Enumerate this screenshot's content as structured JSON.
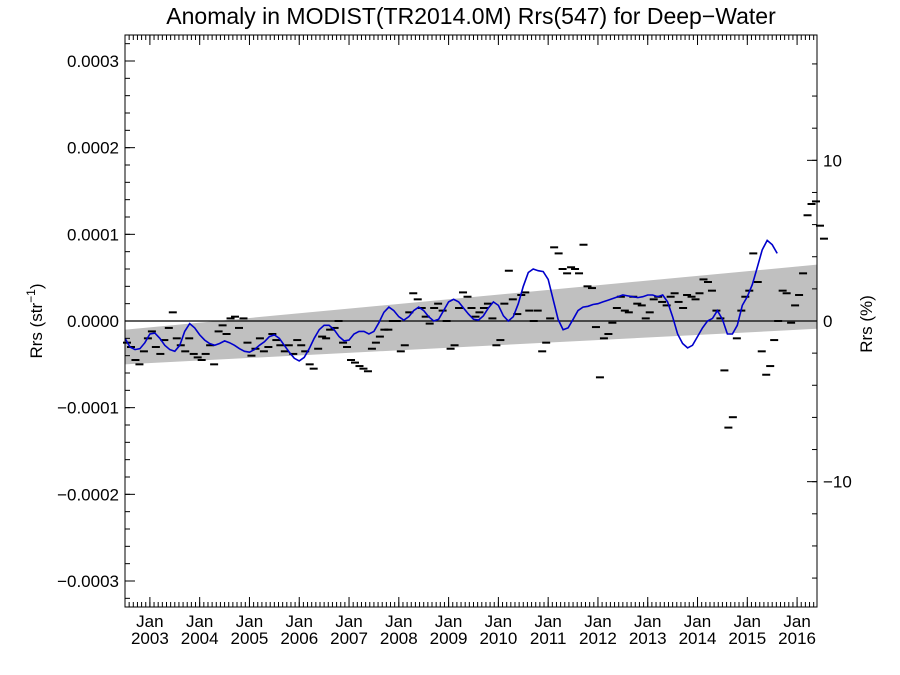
{
  "chart_data": {
    "type": "scatter",
    "title": "Anomaly in MODIST(TR2014.0M) Rrs(547) for Deep−Water",
    "ylabel_left": {
      "base": "Rrs (str",
      "sup": "−1",
      "end": ")"
    },
    "ylabel_right": "Rrs (%)",
    "xlim": [
      2002.5,
      2016.4
    ],
    "ylim": [
      -0.00033,
      0.00033
    ],
    "right_axis_ylim": [
      -17.8,
      17.8
    ],
    "y_ticks": [
      {
        "v": 0.0003,
        "label": "0.0003"
      },
      {
        "v": 0.0002,
        "label": "0.0002"
      },
      {
        "v": 0.0001,
        "label": "0.0001"
      },
      {
        "v": 0.0,
        "label": "0.0000"
      },
      {
        "v": -0.0001,
        "label": "−0.0001"
      },
      {
        "v": -0.0002,
        "label": "−0.0002"
      },
      {
        "v": -0.0003,
        "label": "−0.0003"
      }
    ],
    "right_ticks": [
      {
        "v": 10,
        "label": "10"
      },
      {
        "v": 0,
        "label": "0"
      },
      {
        "v": -10,
        "label": "−10"
      }
    ],
    "x_ticks": [
      {
        "v": 2003,
        "label1": "Jan",
        "label2": "2003"
      },
      {
        "v": 2004,
        "label1": "Jan",
        "label2": "2004"
      },
      {
        "v": 2005,
        "label1": "Jan",
        "label2": "2005"
      },
      {
        "v": 2006,
        "label1": "Jan",
        "label2": "2006"
      },
      {
        "v": 2007,
        "label1": "Jan",
        "label2": "2007"
      },
      {
        "v": 2008,
        "label1": "Jan",
        "label2": "2008"
      },
      {
        "v": 2009,
        "label1": "Jan",
        "label2": "2009"
      },
      {
        "v": 2010,
        "label1": "Jan",
        "label2": "2010"
      },
      {
        "v": 2011,
        "label1": "Jan",
        "label2": "2011"
      },
      {
        "v": 2012,
        "label1": "Jan",
        "label2": "2012"
      },
      {
        "v": 2013,
        "label1": "Jan",
        "label2": "2013"
      },
      {
        "v": 2014,
        "label1": "Jan",
        "label2": "2014"
      },
      {
        "v": 2015,
        "label1": "Jan",
        "label2": "2015"
      },
      {
        "v": 2016,
        "label1": "Jan",
        "label2": "2016"
      }
    ],
    "band": {
      "x": [
        2002.5,
        2016.4
      ],
      "upper": [
        -1e-05,
        6.5e-05
      ],
      "lower": [
        -5e-05,
        -9e-06
      ]
    },
    "zero_line": 0,
    "colors": {
      "band": "#c0c0c0",
      "smooth_line": "#0000cc",
      "points": "#000000",
      "axes": "#000000",
      "zero_line": "#000000"
    },
    "monthly_points": [
      [
        2002.54,
        -2.5e-05
      ],
      [
        2002.62,
        -3e-05
      ],
      [
        2002.71,
        -4.5e-05
      ],
      [
        2002.79,
        -5e-05
      ],
      [
        2002.88,
        -3.5e-05
      ],
      [
        2002.96,
        -2e-05
      ],
      [
        2003.04,
        -1.2e-05
      ],
      [
        2003.12,
        -3e-05
      ],
      [
        2003.21,
        -3.8e-05
      ],
      [
        2003.29,
        -2.2e-05
      ],
      [
        2003.38,
        -8e-06
      ],
      [
        2003.46,
        1e-05
      ],
      [
        2003.54,
        -2e-05
      ],
      [
        2003.62,
        -2.8e-05
      ],
      [
        2003.71,
        -3.5e-05
      ],
      [
        2003.79,
        -2e-05
      ],
      [
        2003.88,
        -3.8e-05
      ],
      [
        2003.96,
        -4.2e-05
      ],
      [
        2004.04,
        -4.5e-05
      ],
      [
        2004.12,
        -3.8e-05
      ],
      [
        2004.21,
        -2.8e-05
      ],
      [
        2004.29,
        -5e-05
      ],
      [
        2004.38,
        -1.2e-05
      ],
      [
        2004.46,
        -5e-06
      ],
      [
        2004.54,
        -1.5e-05
      ],
      [
        2004.62,
        3e-06
      ],
      [
        2004.71,
        5e-06
      ],
      [
        2004.79,
        -8e-06
      ],
      [
        2004.88,
        3e-06
      ],
      [
        2004.96,
        -2.5e-05
      ],
      [
        2005.04,
        -4e-05
      ],
      [
        2005.12,
        -3.2e-05
      ],
      [
        2005.21,
        -2e-05
      ],
      [
        2005.29,
        -3.5e-05
      ],
      [
        2005.38,
        -3e-05
      ],
      [
        2005.46,
        -1.5e-05
      ],
      [
        2005.54,
        -2.2e-05
      ],
      [
        2005.62,
        -2.8e-05
      ],
      [
        2005.71,
        -3.5e-05
      ],
      [
        2005.79,
        -2.8e-05
      ],
      [
        2005.88,
        -3.8e-05
      ],
      [
        2005.96,
        -2.2e-05
      ],
      [
        2006.04,
        -2.8e-05
      ],
      [
        2006.12,
        -3.5e-05
      ],
      [
        2006.21,
        -5e-05
      ],
      [
        2006.29,
        -5.5e-05
      ],
      [
        2006.38,
        -3.2e-05
      ],
      [
        2006.46,
        -1.8e-05
      ],
      [
        2006.54,
        -2e-05
      ],
      [
        2006.62,
        -1e-05
      ],
      [
        2006.71,
        -8e-06
      ],
      [
        2006.79,
        0.0
      ],
      [
        2006.88,
        -2.5e-05
      ],
      [
        2006.96,
        -3e-05
      ],
      [
        2007.04,
        -4.5e-05
      ],
      [
        2007.12,
        -4.8e-05
      ],
      [
        2007.21,
        -5.2e-05
      ],
      [
        2007.29,
        -5.5e-05
      ],
      [
        2007.38,
        -5.8e-05
      ],
      [
        2007.46,
        -3.2e-05
      ],
      [
        2007.54,
        -2.5e-05
      ],
      [
        2007.62,
        -1.8e-05
      ],
      [
        2007.71,
        -1e-05
      ],
      [
        2007.79,
        -1e-05
      ],
      [
        2007.88,
        0.0
      ],
      [
        2007.96,
        0.0
      ],
      [
        2008.04,
        -3.5e-05
      ],
      [
        2008.12,
        -2.8e-05
      ],
      [
        2008.21,
        1e-05
      ],
      [
        2008.29,
        3.2e-05
      ],
      [
        2008.38,
        2.5e-05
      ],
      [
        2008.46,
        1.5e-05
      ],
      [
        2008.54,
        5e-06
      ],
      [
        2008.62,
        -3e-06
      ],
      [
        2008.71,
        1.5e-05
      ],
      [
        2008.79,
        2e-05
      ],
      [
        2008.88,
        1.2e-05
      ],
      [
        2008.96,
        0.0
      ],
      [
        2009.04,
        -3.2e-05
      ],
      [
        2009.12,
        -2.8e-05
      ],
      [
        2009.21,
        1.5e-05
      ],
      [
        2009.29,
        3.3e-05
      ],
      [
        2009.38,
        2.8e-05
      ],
      [
        2009.46,
        1.5e-05
      ],
      [
        2009.54,
        5e-06
      ],
      [
        2009.62,
        1e-05
      ],
      [
        2009.71,
        1.5e-05
      ],
      [
        2009.79,
        2e-05
      ],
      [
        2009.88,
        3e-06
      ],
      [
        2009.96,
        -2.8e-05
      ],
      [
        2010.04,
        -2.2e-05
      ],
      [
        2010.12,
        2e-05
      ],
      [
        2010.21,
        5.8e-05
      ],
      [
        2010.29,
        2.5e-05
      ],
      [
        2010.38,
        8e-06
      ],
      [
        2010.46,
        3e-05
      ],
      [
        2010.54,
        3.3e-05
      ],
      [
        2010.62,
        1.2e-05
      ],
      [
        2010.71,
        0.0
      ],
      [
        2010.79,
        1.2e-05
      ],
      [
        2010.88,
        -3.5e-05
      ],
      [
        2010.96,
        -2.5e-05
      ],
      [
        2011.04,
        3e-06
      ],
      [
        2011.12,
        8.5e-05
      ],
      [
        2011.21,
        7.8e-05
      ],
      [
        2011.29,
        6e-05
      ],
      [
        2011.38,
        5.5e-05
      ],
      [
        2011.46,
        6.2e-05
      ],
      [
        2011.54,
        6e-05
      ],
      [
        2011.62,
        5.5e-05
      ],
      [
        2011.71,
        8.8e-05
      ],
      [
        2011.79,
        4e-05
      ],
      [
        2011.88,
        3.8e-05
      ],
      [
        2011.96,
        -7e-06
      ],
      [
        2012.04,
        -6.5e-05
      ],
      [
        2012.12,
        -2e-05
      ],
      [
        2012.21,
        -1.5e-05
      ],
      [
        2012.29,
        -2e-06
      ],
      [
        2012.38,
        1.5e-05
      ],
      [
        2012.46,
        2.8e-05
      ],
      [
        2012.54,
        1.2e-05
      ],
      [
        2012.62,
        1e-05
      ],
      [
        2012.71,
        2.8e-05
      ],
      [
        2012.79,
        2e-05
      ],
      [
        2012.88,
        1.8e-05
      ],
      [
        2012.96,
        3e-06
      ],
      [
        2013.04,
        1e-05
      ],
      [
        2013.12,
        2.5e-05
      ],
      [
        2013.21,
        2.8e-05
      ],
      [
        2013.29,
        2.2e-05
      ],
      [
        2013.38,
        1.8e-05
      ],
      [
        2013.46,
        2.8e-05
      ],
      [
        2013.54,
        3.2e-05
      ],
      [
        2013.62,
        2.2e-05
      ],
      [
        2013.71,
        1.5e-05
      ],
      [
        2013.79,
        3e-05
      ],
      [
        2013.88,
        2.8e-05
      ],
      [
        2013.96,
        2.5e-05
      ],
      [
        2014.04,
        3.2e-05
      ],
      [
        2014.12,
        4.8e-05
      ],
      [
        2014.21,
        4.5e-05
      ],
      [
        2014.29,
        3.5e-05
      ],
      [
        2014.38,
        1.2e-05
      ],
      [
        2014.46,
        3e-06
      ],
      [
        2014.54,
        -5.7e-05
      ],
      [
        2014.62,
        -0.000123
      ],
      [
        2014.71,
        -0.000111
      ],
      [
        2014.79,
        -2e-05
      ],
      [
        2014.88,
        1.2e-05
      ],
      [
        2014.96,
        2.8e-05
      ],
      [
        2015.04,
        3.5e-05
      ],
      [
        2015.12,
        7.8e-05
      ],
      [
        2015.21,
        4.5e-05
      ],
      [
        2015.29,
        -3.5e-05
      ],
      [
        2015.38,
        -6.2e-05
      ],
      [
        2015.46,
        -5.2e-05
      ],
      [
        2015.54,
        -2.2e-05
      ],
      [
        2015.62,
        0.0
      ],
      [
        2015.71,
        3.5e-05
      ],
      [
        2015.79,
        3.2e-05
      ],
      [
        2015.88,
        -2e-06
      ],
      [
        2015.96,
        1.8e-05
      ],
      [
        2016.04,
        3e-05
      ],
      [
        2016.12,
        5.5e-05
      ],
      [
        2016.21,
        0.000122
      ],
      [
        2016.29,
        0.000135
      ],
      [
        2016.38,
        0.000138
      ],
      [
        2016.46,
        0.00011
      ],
      [
        2016.54,
        9.5e-05
      ]
    ],
    "smooth_series": [
      [
        2002.5,
        -2e-05
      ],
      [
        2002.6,
        -3e-05
      ],
      [
        2002.7,
        -3.3e-05
      ],
      [
        2002.8,
        -3.2e-05
      ],
      [
        2002.9,
        -2.5e-05
      ],
      [
        2003.0,
        -1.5e-05
      ],
      [
        2003.1,
        -1.4e-05
      ],
      [
        2003.2,
        -2e-05
      ],
      [
        2003.3,
        -2.8e-05
      ],
      [
        2003.4,
        -3.3e-05
      ],
      [
        2003.5,
        -3.5e-05
      ],
      [
        2003.6,
        -2.8e-05
      ],
      [
        2003.7,
        -1.2e-05
      ],
      [
        2003.8,
        -3e-06
      ],
      [
        2003.9,
        -8e-06
      ],
      [
        2004.0,
        -1.6e-05
      ],
      [
        2004.1,
        -2.2e-05
      ],
      [
        2004.2,
        -2.6e-05
      ],
      [
        2004.3,
        -2.8e-05
      ],
      [
        2004.4,
        -2.6e-05
      ],
      [
        2004.5,
        -2.3e-05
      ],
      [
        2004.6,
        -2.5e-05
      ],
      [
        2004.7,
        -2.8e-05
      ],
      [
        2004.8,
        -3.2e-05
      ],
      [
        2004.9,
        -3.5e-05
      ],
      [
        2005.0,
        -3.6e-05
      ],
      [
        2005.1,
        -3.3e-05
      ],
      [
        2005.2,
        -2.8e-05
      ],
      [
        2005.3,
        -2.4e-05
      ],
      [
        2005.4,
        -1.8e-05
      ],
      [
        2005.5,
        -1.6e-05
      ],
      [
        2005.6,
        -2e-05
      ],
      [
        2005.7,
        -2.8e-05
      ],
      [
        2005.8,
        -3.6e-05
      ],
      [
        2005.9,
        -4.3e-05
      ],
      [
        2006.0,
        -4.6e-05
      ],
      [
        2006.1,
        -4.2e-05
      ],
      [
        2006.2,
        -3.2e-05
      ],
      [
        2006.3,
        -2e-05
      ],
      [
        2006.4,
        -1e-05
      ],
      [
        2006.5,
        -5e-06
      ],
      [
        2006.6,
        -5e-06
      ],
      [
        2006.7,
        -1e-05
      ],
      [
        2006.8,
        -1.8e-05
      ],
      [
        2006.9,
        -2.3e-05
      ],
      [
        2007.0,
        -2.2e-05
      ],
      [
        2007.1,
        -1.5e-05
      ],
      [
        2007.2,
        -1.2e-05
      ],
      [
        2007.3,
        -1.2e-05
      ],
      [
        2007.4,
        -1.5e-05
      ],
      [
        2007.5,
        -1.2e-05
      ],
      [
        2007.6,
        -2e-06
      ],
      [
        2007.7,
        1e-05
      ],
      [
        2007.8,
        1.6e-05
      ],
      [
        2007.9,
        1.2e-05
      ],
      [
        2008.0,
        5e-06
      ],
      [
        2008.1,
        1e-06
      ],
      [
        2008.2,
        5e-06
      ],
      [
        2008.3,
        1.2e-05
      ],
      [
        2008.4,
        1.6e-05
      ],
      [
        2008.5,
        1.2e-05
      ],
      [
        2008.6,
        5e-06
      ],
      [
        2008.7,
        0.0
      ],
      [
        2008.8,
        2e-06
      ],
      [
        2008.9,
        1.2e-05
      ],
      [
        2009.0,
        2.2e-05
      ],
      [
        2009.1,
        2.5e-05
      ],
      [
        2009.2,
        2.2e-05
      ],
      [
        2009.3,
        1.5e-05
      ],
      [
        2009.4,
        8e-06
      ],
      [
        2009.5,
        2e-06
      ],
      [
        2009.6,
        1e-06
      ],
      [
        2009.7,
        6e-06
      ],
      [
        2009.8,
        1.5e-05
      ],
      [
        2009.9,
        2.2e-05
      ],
      [
        2010.0,
        1.8e-05
      ],
      [
        2010.1,
        6e-06
      ],
      [
        2010.2,
        0.0
      ],
      [
        2010.3,
        5e-06
      ],
      [
        2010.4,
        2e-05
      ],
      [
        2010.5,
        4e-05
      ],
      [
        2010.6,
        5.6e-05
      ],
      [
        2010.7,
        6e-05
      ],
      [
        2010.8,
        5.8e-05
      ],
      [
        2010.9,
        5.7e-05
      ],
      [
        2011.0,
        4.8e-05
      ],
      [
        2011.1,
        2.5e-05
      ],
      [
        2011.2,
        2e-06
      ],
      [
        2011.3,
        -1e-05
      ],
      [
        2011.4,
        -8e-06
      ],
      [
        2011.5,
        2e-06
      ],
      [
        2011.6,
        1.2e-05
      ],
      [
        2011.7,
        1.6e-05
      ],
      [
        2011.8,
        1.7e-05
      ],
      [
        2011.9,
        1.9e-05
      ],
      [
        2012.0,
        2e-05
      ],
      [
        2012.1,
        2.2e-05
      ],
      [
        2012.2,
        2.4e-05
      ],
      [
        2012.3,
        2.6e-05
      ],
      [
        2012.4,
        2.8e-05
      ],
      [
        2012.5,
        3e-05
      ],
      [
        2012.6,
        2.9e-05
      ],
      [
        2012.7,
        2.8e-05
      ],
      [
        2012.8,
        2.7e-05
      ],
      [
        2012.9,
        2.8e-05
      ],
      [
        2013.0,
        3e-05
      ],
      [
        2013.1,
        3e-05
      ],
      [
        2013.2,
        2.8e-05
      ],
      [
        2013.3,
        3e-05
      ],
      [
        2013.4,
        2.2e-05
      ],
      [
        2013.5,
        5e-06
      ],
      [
        2013.6,
        -1.5e-05
      ],
      [
        2013.7,
        -2.6e-05
      ],
      [
        2013.8,
        -3.1e-05
      ],
      [
        2013.9,
        -2.8e-05
      ],
      [
        2014.0,
        -1.8e-05
      ],
      [
        2014.1,
        -8e-06
      ],
      [
        2014.2,
        0.0
      ],
      [
        2014.3,
        3e-06
      ],
      [
        2014.4,
        1.2e-05
      ],
      [
        2014.5,
        2e-06
      ],
      [
        2014.6,
        -1.5e-05
      ],
      [
        2014.7,
        -1.5e-05
      ],
      [
        2014.8,
        -5e-06
      ],
      [
        2014.9,
        1.8e-05
      ],
      [
        2015.0,
        2.8e-05
      ],
      [
        2015.1,
        4.2e-05
      ],
      [
        2015.2,
        6.2e-05
      ],
      [
        2015.3,
        8.2e-05
      ],
      [
        2015.4,
        9.3e-05
      ],
      [
        2015.5,
        8.8e-05
      ],
      [
        2015.6,
        7.8e-05
      ]
    ]
  }
}
